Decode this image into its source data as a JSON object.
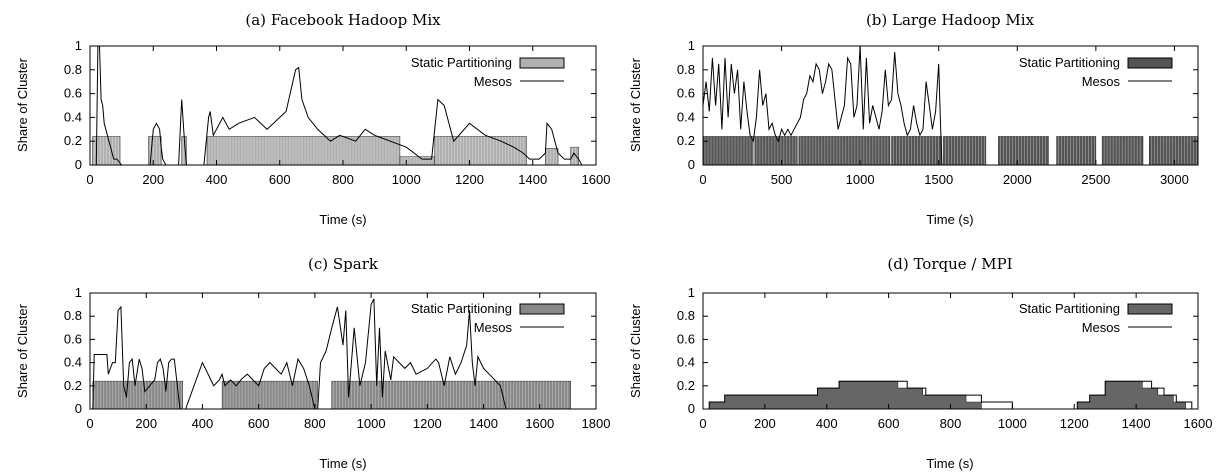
{
  "chart_data": [
    {
      "type": "area",
      "title": "(a) Facebook Hadoop Mix",
      "xlabel": "Time (s)",
      "ylabel": "Share of Cluster",
      "xlim": [
        0,
        1600
      ],
      "ylim": [
        0,
        1
      ],
      "xticks": [
        "0",
        "200",
        "400",
        "600",
        "800",
        "1000",
        "1200",
        "1400",
        "1600"
      ],
      "yticks": [
        "0",
        "0.2",
        "0.4",
        "0.6",
        "0.8",
        "1"
      ],
      "static_fill": "#b0b0b0",
      "legend": {
        "position": "top-right",
        "static_label": "Static Partitioning",
        "mesos_label": "Mesos"
      },
      "series": [
        {
          "name": "Static Partitioning",
          "intervals": [
            [
              8,
              95,
              0.24
            ],
            [
              185,
              225,
              0.24
            ],
            [
              290,
              305,
              0.24
            ],
            [
              370,
              980,
              0.24
            ],
            [
              980,
              1090,
              0.07
            ],
            [
              1090,
              1380,
              0.24
            ],
            [
              1440,
              1480,
              0.14
            ],
            [
              1520,
              1545,
              0.15
            ]
          ]
        },
        {
          "name": "Mesos",
          "x": [
            0,
            20,
            25,
            30,
            35,
            40,
            45,
            55,
            65,
            75,
            85,
            100,
            120,
            190,
            200,
            210,
            220,
            225,
            230,
            240,
            280,
            290,
            300,
            305,
            320,
            360,
            375,
            380,
            390,
            420,
            440,
            470,
            520,
            560,
            620,
            650,
            660,
            670,
            690,
            720,
            760,
            790,
            840,
            870,
            900,
            950,
            1000,
            1050,
            1080,
            1090,
            1100,
            1120,
            1150,
            1200,
            1250,
            1300,
            1340,
            1370,
            1390,
            1420,
            1440,
            1445,
            1460,
            1480,
            1500,
            1520,
            1530,
            1545,
            1555
          ],
          "y": [
            0,
            0,
            1.0,
            1.0,
            0.55,
            0.5,
            0.35,
            0.25,
            0.15,
            0.05,
            0.05,
            0,
            0,
            0,
            0.3,
            0.35,
            0.3,
            0.15,
            0.05,
            0,
            0,
            0.55,
            0.15,
            0,
            0,
            0,
            0.4,
            0.45,
            0.25,
            0.4,
            0.3,
            0.35,
            0.4,
            0.3,
            0.45,
            0.8,
            0.82,
            0.55,
            0.4,
            0.3,
            0.2,
            0.25,
            0.2,
            0.3,
            0.25,
            0.2,
            0.15,
            0.05,
            0.05,
            0.3,
            0.55,
            0.5,
            0.2,
            0.35,
            0.25,
            0.2,
            0.15,
            0.1,
            0.05,
            0.05,
            0.1,
            0.35,
            0.3,
            0.1,
            0.05,
            0.05,
            0.1,
            0.05,
            0
          ]
        }
      ]
    },
    {
      "type": "area",
      "title": "(b) Large Hadoop Mix",
      "xlabel": "Time (s)",
      "ylabel": "Share of Cluster",
      "xlim": [
        0,
        3150
      ],
      "ylim": [
        0,
        1
      ],
      "xticks": [
        "0",
        "500",
        "1000",
        "1500",
        "2000",
        "2500",
        "3000"
      ],
      "yticks": [
        "0",
        "0.2",
        "0.4",
        "0.6",
        "0.8",
        "1"
      ],
      "static_fill": "#555555",
      "legend": {
        "position": "top-right",
        "static_label": "Static Partitioning",
        "mesos_label": "Mesos"
      },
      "series": [
        {
          "name": "Static Partitioning",
          "intervals": [
            [
              0,
              320,
              0.24
            ],
            [
              330,
              600,
              0.24
            ],
            [
              610,
              1190,
              0.24
            ],
            [
              1200,
              1520,
              0.24
            ],
            [
              1530,
              1800,
              0.24
            ],
            [
              1880,
              2200,
              0.24
            ],
            [
              2250,
              2500,
              0.24
            ],
            [
              2540,
              2800,
              0.24
            ],
            [
              2840,
              3150,
              0.24
            ]
          ]
        },
        {
          "name": "Mesos",
          "x": [
            0,
            20,
            40,
            60,
            80,
            100,
            120,
            140,
            160,
            180,
            200,
            220,
            240,
            260,
            280,
            300,
            320,
            340,
            360,
            380,
            400,
            420,
            440,
            460,
            480,
            500,
            520,
            540,
            560,
            580,
            600,
            620,
            640,
            660,
            680,
            700,
            720,
            740,
            760,
            780,
            800,
            820,
            840,
            860,
            880,
            900,
            920,
            940,
            960,
            980,
            1000,
            1020,
            1040,
            1060,
            1080,
            1100,
            1120,
            1140,
            1160,
            1180,
            1200,
            1220,
            1240,
            1260,
            1280,
            1300,
            1320,
            1340,
            1360,
            1380,
            1400,
            1420,
            1440,
            1460,
            1480,
            1500,
            1510,
            1520
          ],
          "y": [
            0.5,
            0.7,
            0.45,
            0.9,
            0.5,
            0.85,
            0.3,
            0.9,
            0.4,
            0.85,
            0.6,
            0.8,
            0.3,
            0.7,
            0.45,
            0.25,
            0.2,
            0.4,
            0.8,
            0.5,
            0.6,
            0.3,
            0.35,
            0.25,
            0.2,
            0.3,
            0.25,
            0.3,
            0.25,
            0.3,
            0.35,
            0.4,
            0.55,
            0.6,
            0.75,
            0.7,
            0.85,
            0.8,
            0.6,
            0.7,
            0.85,
            0.8,
            0.55,
            0.3,
            0.4,
            0.5,
            0.9,
            0.85,
            0.4,
            0.5,
            1.0,
            0.3,
            0.9,
            0.35,
            0.5,
            0.4,
            0.3,
            0.45,
            0.8,
            0.5,
            0.55,
            0.95,
            0.6,
            0.5,
            0.35,
            0.25,
            0.3,
            0.5,
            0.35,
            0.25,
            0.3,
            0.7,
            0.5,
            0.3,
            0.45,
            0.85,
            0.4,
            0
          ]
        }
      ]
    },
    {
      "type": "area",
      "title": "(c) Spark",
      "xlabel": "Time (s)",
      "ylabel": "Share of Cluster",
      "xlim": [
        0,
        1800
      ],
      "ylim": [
        0,
        1
      ],
      "xticks": [
        "0",
        "200",
        "400",
        "600",
        "800",
        "1000",
        "1200",
        "1400",
        "1600",
        "1800"
      ],
      "yticks": [
        "0",
        "0.2",
        "0.4",
        "0.6",
        "0.8",
        "1"
      ],
      "static_fill": "#888888",
      "legend": {
        "position": "top-right",
        "static_label": "Static Partitioning",
        "mesos_label": "Mesos"
      },
      "series": [
        {
          "name": "Static Partitioning",
          "intervals": [
            [
              10,
              330,
              0.24
            ],
            [
              470,
              810,
              0.24
            ],
            [
              860,
              1710,
              0.24
            ]
          ]
        },
        {
          "name": "Mesos",
          "x": [
            0,
            10,
            15,
            60,
            65,
            80,
            90,
            100,
            110,
            120,
            130,
            140,
            150,
            160,
            175,
            185,
            195,
            230,
            240,
            250,
            260,
            270,
            280,
            290,
            300,
            320,
            330,
            340,
            400,
            410,
            440,
            460,
            470,
            480,
            500,
            520,
            540,
            560,
            580,
            600,
            620,
            640,
            660,
            680,
            700,
            720,
            740,
            760,
            780,
            800,
            810,
            820,
            840,
            860,
            880,
            900,
            910,
            920,
            940,
            960,
            980,
            1000,
            1010,
            1020,
            1030,
            1040,
            1050,
            1070,
            1080,
            1100,
            1120,
            1140,
            1160,
            1200,
            1230,
            1240,
            1260,
            1280,
            1300,
            1320,
            1340,
            1350,
            1360,
            1370,
            1380,
            1400,
            1420,
            1460,
            1480,
            1490
          ],
          "y": [
            0,
            0,
            0.47,
            0.47,
            0.3,
            0.4,
            0.4,
            0.85,
            0.88,
            0.2,
            0.1,
            0.4,
            0.43,
            0.2,
            0.43,
            0.35,
            0.15,
            0.25,
            0.4,
            0.43,
            0.35,
            0.15,
            0.4,
            0.43,
            0.43,
            0,
            0,
            0,
            0.4,
            0.35,
            0.2,
            0.25,
            0.3,
            0.2,
            0.25,
            0.2,
            0.26,
            0.3,
            0.25,
            0.2,
            0.35,
            0.4,
            0.35,
            0.3,
            0.4,
            0.2,
            0.43,
            0.35,
            0.2,
            0,
            0,
            0.4,
            0.5,
            0.7,
            0.88,
            0.55,
            0.85,
            0.1,
            0.7,
            0.2,
            0.4,
            0.9,
            0.95,
            0.2,
            0.7,
            0.1,
            0.5,
            0.25,
            0.45,
            0.4,
            0.35,
            0.4,
            0.3,
            0.35,
            0.43,
            0.4,
            0.2,
            0.45,
            0.3,
            0.4,
            0.55,
            0.85,
            0.4,
            0.2,
            0.45,
            0.35,
            0.3,
            0.2,
            0,
            0
          ]
        }
      ]
    },
    {
      "type": "area",
      "title": "(d) Torque / MPI",
      "xlabel": "Time (s)",
      "ylabel": "Share of Cluster",
      "xlim": [
        0,
        1600
      ],
      "ylim": [
        0,
        1
      ],
      "xticks": [
        "0",
        "200",
        "400",
        "600",
        "800",
        "1000",
        "1200",
        "1400",
        "1600"
      ],
      "yticks": [
        "0",
        "0.2",
        "0.4",
        "0.6",
        "0.8",
        "1"
      ],
      "static_fill": "#666666",
      "legend": {
        "position": "top-right",
        "static_label": "Static Partitioning",
        "mesos_label": "Mesos"
      },
      "series": [
        {
          "name": "Static Partitioning",
          "x": [
            0,
            20,
            20,
            70,
            70,
            370,
            370,
            440,
            440,
            630,
            630,
            710,
            710,
            850,
            850,
            900,
            900,
            1210,
            1210,
            1250,
            1250,
            1300,
            1300,
            1420,
            1420,
            1470,
            1470,
            1520,
            1520,
            1560,
            1560
          ],
          "y": [
            0,
            0,
            0.06,
            0.06,
            0.12,
            0.12,
            0.18,
            0.18,
            0.24,
            0.24,
            0.18,
            0.18,
            0.12,
            0.12,
            0.06,
            0.06,
            0,
            0,
            0.06,
            0.06,
            0.12,
            0.12,
            0.24,
            0.24,
            0.18,
            0.18,
            0.12,
            0.12,
            0.06,
            0.06,
            0
          ]
        },
        {
          "name": "Mesos",
          "x": [
            0,
            20,
            20,
            70,
            70,
            370,
            370,
            440,
            440,
            660,
            660,
            720,
            720,
            900,
            900,
            1000,
            1000,
            1210,
            1210,
            1250,
            1250,
            1300,
            1300,
            1450,
            1450,
            1490,
            1490,
            1530,
            1530,
            1580,
            1580
          ],
          "y": [
            0,
            0,
            0.06,
            0.06,
            0.12,
            0.12,
            0.18,
            0.18,
            0.24,
            0.24,
            0.18,
            0.18,
            0.12,
            0.12,
            0.06,
            0.06,
            0,
            0,
            0.06,
            0.06,
            0.12,
            0.12,
            0.24,
            0.24,
            0.18,
            0.18,
            0.12,
            0.12,
            0.06,
            0.06,
            0
          ]
        }
      ]
    }
  ]
}
